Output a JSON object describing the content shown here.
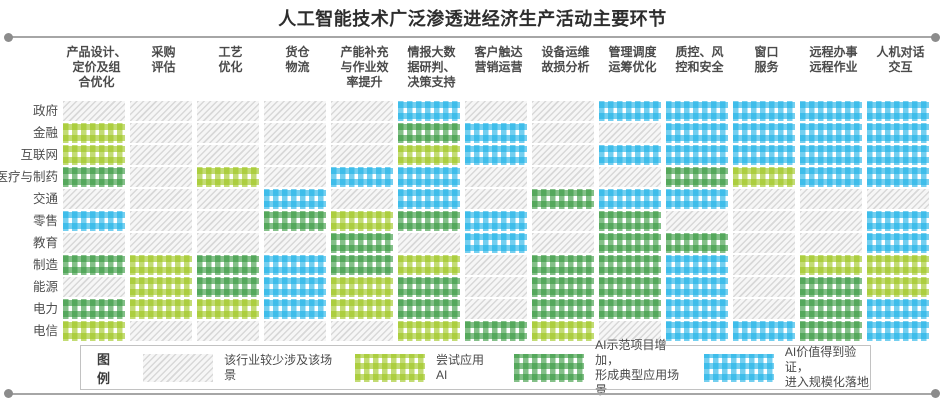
{
  "title": "人工智能技术广泛渗透进经济生产活动主要环节",
  "legend": {
    "title": "图例",
    "items": [
      {
        "code": "G",
        "label": "该行业较少涉及该场景"
      },
      {
        "code": "Y",
        "label": "尝试应用AI"
      },
      {
        "code": "D",
        "label": "AI示范项目增加，\n形成典型应用场景"
      },
      {
        "code": "B",
        "label": "AI价值得到验证，\n进入规模化落地"
      }
    ]
  },
  "colors": {
    "gray_hatch": "#d8d8d8",
    "yellow_green": "#a5c92c",
    "dark_green": "#3f9f47",
    "blue": "#1eb2e7"
  },
  "chart_data": {
    "type": "heatmap",
    "title": "人工智能技术广泛渗透进经济生产活动主要环节",
    "columns": [
      "产品设计、\n定价及组\n合优化",
      "采购\n评估",
      "工艺\n优化",
      "货仓\n物流",
      "产能补充\n与作业效\n率提升",
      "情报大数\n据研判、\n决策支持",
      "客户触达\n营销运营",
      "设备运维\n故损分析",
      "管理调度\n运筹优化",
      "质控、风\n控和安全",
      "窗口\n服务",
      "远程办事\n远程作业",
      "人机对话\n交互"
    ],
    "row_labels": [
      "政府",
      "金融",
      "互联网",
      "医疗与制药",
      "交通",
      "零售",
      "教育",
      "制造",
      "能源",
      "电力",
      "电信"
    ],
    "level_codes": {
      "G": "该行业较少涉及该场景",
      "Y": "尝试应用AI",
      "D": "AI示范项目增加，形成典型应用场景",
      "B": "AI价值得到验证，进入规模化落地"
    },
    "matrix": [
      [
        "G",
        "G",
        "G",
        "G",
        "G",
        "B",
        "G",
        "G",
        "B",
        "B",
        "B",
        "B",
        "B"
      ],
      [
        "Y",
        "G",
        "G",
        "G",
        "G",
        "D",
        "B",
        "G",
        "G",
        "B",
        "B",
        "B",
        "B"
      ],
      [
        "Y",
        "G",
        "G",
        "G",
        "G",
        "Y",
        "B",
        "G",
        "B",
        "B",
        "B",
        "B",
        "B"
      ],
      [
        "D",
        "G",
        "Y",
        "G",
        "B",
        "B",
        "G",
        "G",
        "G",
        "D",
        "Y",
        "B",
        "B"
      ],
      [
        "G",
        "G",
        "G",
        "B",
        "G",
        "B",
        "G",
        "D",
        "B",
        "B",
        "G",
        "G",
        "G"
      ],
      [
        "B",
        "G",
        "G",
        "D",
        "Y",
        "D",
        "B",
        "G",
        "D",
        "G",
        "G",
        "G",
        "B"
      ],
      [
        "G",
        "G",
        "G",
        "G",
        "D",
        "G",
        "B",
        "G",
        "D",
        "D",
        "G",
        "G",
        "B"
      ],
      [
        "D",
        "Y",
        "D",
        "B",
        "D",
        "Y",
        "G",
        "D",
        "D",
        "B",
        "G",
        "Y",
        "Y"
      ],
      [
        "G",
        "Y",
        "D",
        "B",
        "Y",
        "D",
        "G",
        "D",
        "D",
        "B",
        "G",
        "D",
        "Y"
      ],
      [
        "D",
        "Y",
        "Y",
        "B",
        "Y",
        "D",
        "G",
        "D",
        "D",
        "B",
        "G",
        "D",
        "B"
      ],
      [
        "Y",
        "G",
        "G",
        "G",
        "G",
        "Y",
        "D",
        "Y",
        "G",
        "B",
        "B",
        "D",
        "B"
      ]
    ]
  }
}
